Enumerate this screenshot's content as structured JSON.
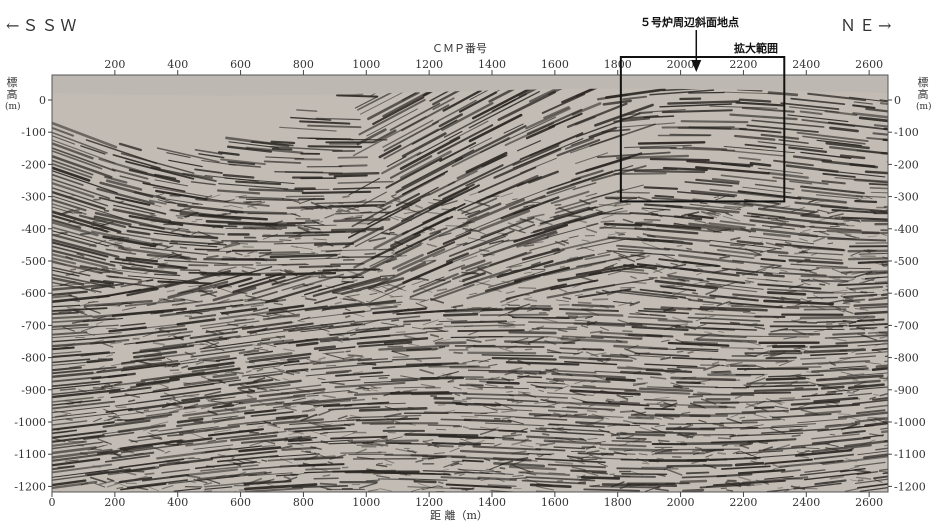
{
  "direction_left": "←ＳＳＷ",
  "direction_right": "ＮＥ→",
  "top_axis": {
    "title": "ＣＭＰ番号",
    "ticks": [
      200,
      400,
      600,
      800,
      1000,
      1200,
      1400,
      1600,
      1800,
      2000,
      2200,
      2400,
      2600
    ]
  },
  "bottom_axis": {
    "title": "距 離（m）",
    "ticks": [
      0,
      200,
      400,
      600,
      800,
      1000,
      1200,
      1400,
      1600,
      1800,
      2000,
      2200,
      2400,
      2600
    ]
  },
  "side_axis": {
    "title_chars": [
      "標",
      "高",
      "(m)"
    ],
    "ticks": [
      0,
      -100,
      -200,
      -300,
      -400,
      -500,
      -600,
      -700,
      -800,
      -900,
      -1000,
      -1100,
      -1200
    ]
  },
  "site_label": "５号炉周辺斜面地点",
  "zoom_label": "拡大範囲",
  "zoom_box": {
    "x_from": 1810,
    "x_to": 2330,
    "elev_from": 0,
    "elev_to": -315
  },
  "colors": {
    "section_bg": "#c2bcb5",
    "reflector": "#2a2622",
    "surface": "#bdb8b2"
  }
}
